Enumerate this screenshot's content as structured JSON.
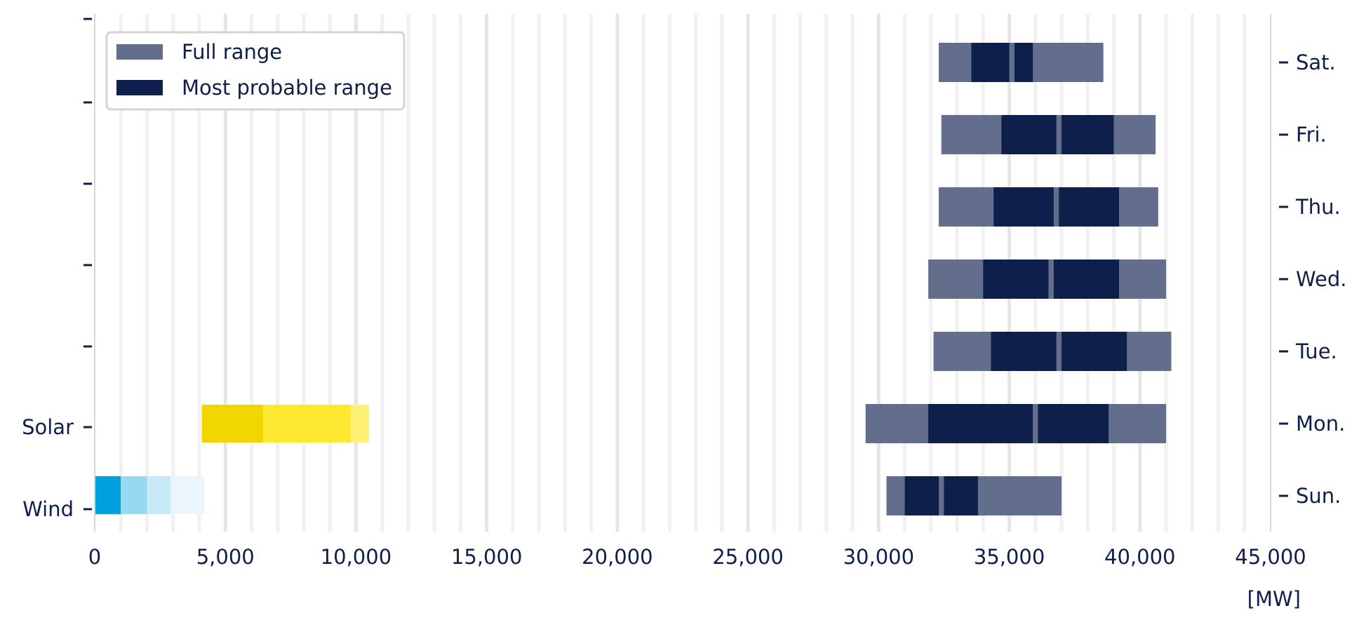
{
  "chart_data": {
    "type": "bar",
    "orientation": "horizontal",
    "unit_label": "[MW]",
    "xlim": [
      0,
      45000
    ],
    "x_ticks": [
      0,
      5000,
      10000,
      15000,
      20000,
      25000,
      30000,
      35000,
      40000,
      45000
    ],
    "x_tick_labels": [
      "0",
      "5,000",
      "10,000",
      "15,000",
      "20,000",
      "25,000",
      "30,000",
      "35,000",
      "40,000",
      "45,000"
    ],
    "grid": "vertical",
    "legend": {
      "position": "top-left",
      "entries": [
        {
          "label": "Full range",
          "color": "#636e8c"
        },
        {
          "label": "Most probable range",
          "color": "#0f1f4b"
        }
      ]
    },
    "left_axis": {
      "rows": [
        "",
        "",
        "",
        "",
        "",
        "Solar",
        "Wind"
      ]
    },
    "right_axis": {
      "rows": [
        "Sat.",
        "Fri.",
        "Thu.",
        "Wed.",
        "Tue.",
        "Mon.",
        "Sun."
      ]
    },
    "demand": [
      {
        "day": "Sat.",
        "full": [
          32300,
          38600
        ],
        "probable": [
          [
            33550,
            35000
          ],
          [
            35200,
            35900
          ]
        ]
      },
      {
        "day": "Fri.",
        "full": [
          32400,
          40600
        ],
        "probable": [
          [
            34700,
            36800
          ],
          [
            37000,
            39000
          ]
        ]
      },
      {
        "day": "Thu.",
        "full": [
          32300,
          40700
        ],
        "probable": [
          [
            34400,
            36700
          ],
          [
            36900,
            39200
          ]
        ]
      },
      {
        "day": "Wed.",
        "full": [
          31900,
          41000
        ],
        "probable": [
          [
            34000,
            36500
          ],
          [
            36700,
            39200
          ]
        ]
      },
      {
        "day": "Tue.",
        "full": [
          32100,
          41200
        ],
        "probable": [
          [
            34300,
            36800
          ],
          [
            37000,
            39500
          ]
        ]
      },
      {
        "day": "Mon.",
        "full": [
          29500,
          41000
        ],
        "probable": [
          [
            31900,
            35900
          ],
          [
            36100,
            38800
          ]
        ]
      },
      {
        "day": "Sun.",
        "full": [
          30300,
          37000
        ],
        "probable": [
          [
            31000,
            32300
          ],
          [
            32500,
            33800
          ]
        ]
      }
    ],
    "generation": [
      {
        "name": "Solar",
        "segments": [
          {
            "range": [
              4100,
              6450
            ],
            "color": "#f2d600"
          },
          {
            "range": [
              6450,
              9800
            ],
            "color": "#ffe930"
          },
          {
            "range": [
              9800,
              10500
            ],
            "color": "#fff176"
          }
        ]
      },
      {
        "name": "Wind",
        "segments": [
          {
            "range": [
              0,
              1000
            ],
            "color": "#00a0dc"
          },
          {
            "range": [
              1000,
              2000
            ],
            "color": "#98d9f2"
          },
          {
            "range": [
              2000,
              2900
            ],
            "color": "#c8e9f7"
          },
          {
            "range": [
              2900,
              4200
            ],
            "color": "#eaf6fc"
          }
        ]
      }
    ],
    "colors": {
      "text": "#0f1f4b",
      "grid": "#ececec",
      "axis": "#d7d7d7"
    }
  }
}
